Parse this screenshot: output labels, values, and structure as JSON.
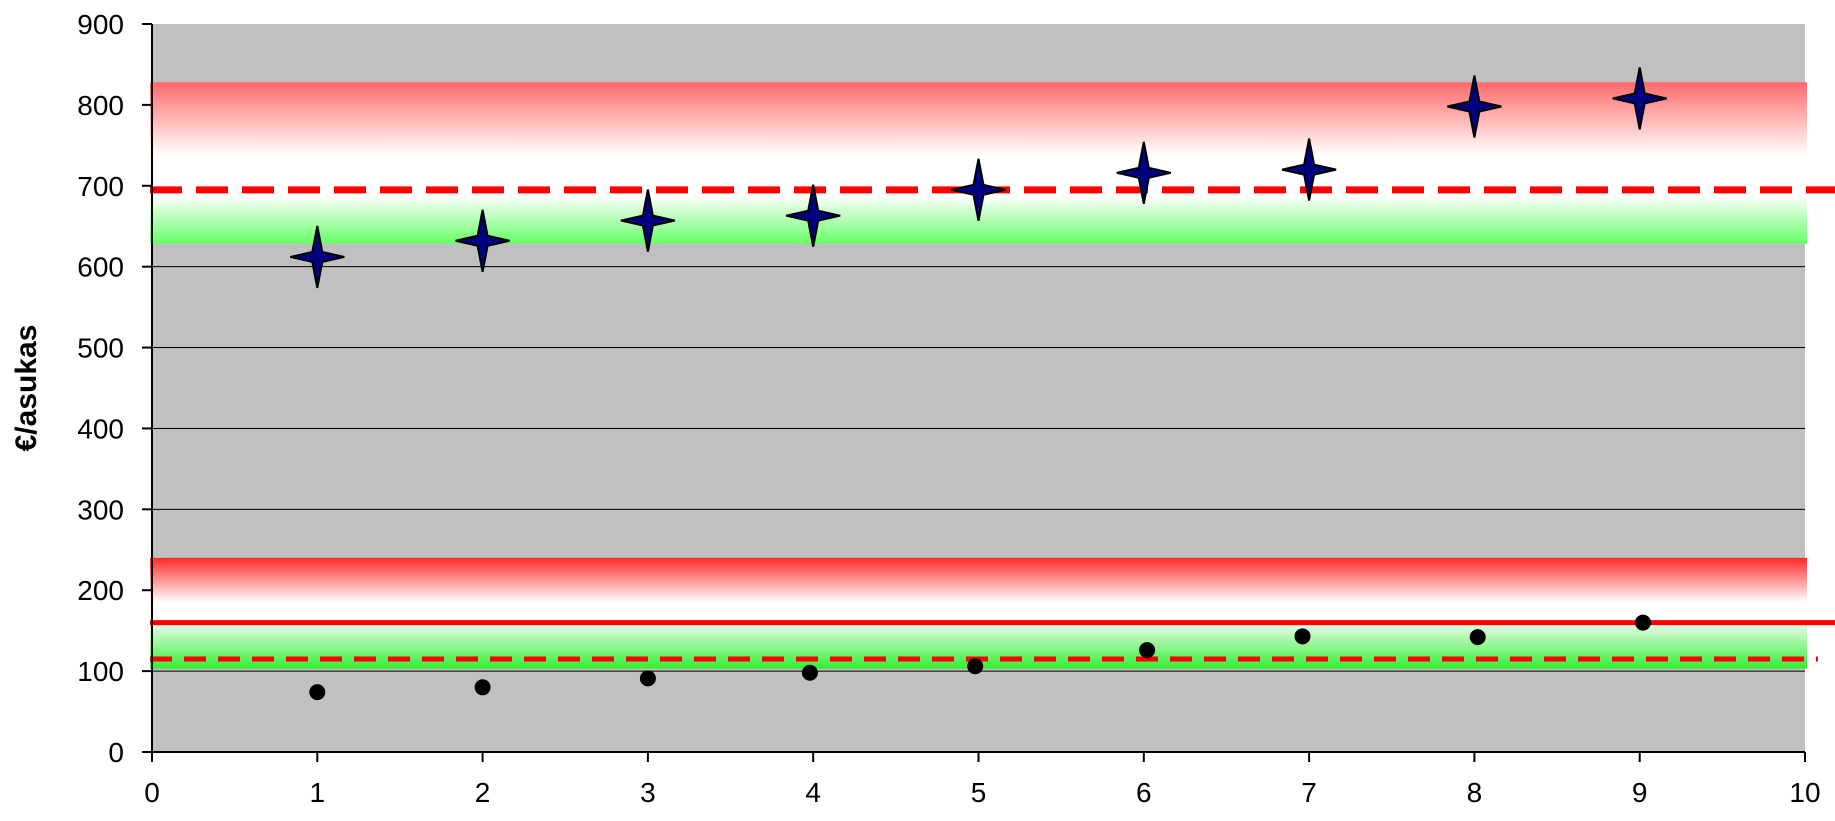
{
  "chart_data": {
    "type": "scatter",
    "title": "",
    "xlabel": "",
    "ylabel": "€/asukas",
    "xlim": [
      0,
      10
    ],
    "ylim": [
      0,
      900
    ],
    "x_ticks": [
      "0",
      "1",
      "2",
      "3",
      "4",
      "5",
      "6",
      "7",
      "8",
      "9",
      "10"
    ],
    "y_ticks": [
      "0",
      "100",
      "200",
      "300",
      "400",
      "500",
      "600",
      "700",
      "800",
      "900"
    ],
    "grid": "horizontal",
    "plot_background": "#c0c0c0",
    "series": [
      {
        "marker": "four-point-star",
        "color": "#000080",
        "points": [
          {
            "x": 1,
            "y": 612
          },
          {
            "x": 2,
            "y": 632
          },
          {
            "x": 3,
            "y": 657
          },
          {
            "x": 4,
            "y": 663
          },
          {
            "x": 5,
            "y": 695
          },
          {
            "x": 6,
            "y": 716
          },
          {
            "x": 7,
            "y": 720
          },
          {
            "x": 8,
            "y": 798
          },
          {
            "x": 9,
            "y": 808
          }
        ]
      },
      {
        "marker": "circle",
        "color": "#000000",
        "points": [
          {
            "x": 1,
            "y": 74
          },
          {
            "x": 2,
            "y": 80
          },
          {
            "x": 3,
            "y": 91
          },
          {
            "x": 3.98,
            "y": 98
          },
          {
            "x": 4.98,
            "y": 106
          },
          {
            "x": 6.02,
            "y": 126
          },
          {
            "x": 6.96,
            "y": 143
          },
          {
            "x": 8.02,
            "y": 142
          },
          {
            "x": 9.02,
            "y": 160
          }
        ]
      }
    ],
    "bands": [
      {
        "y_bottom": 628,
        "y_top": 828,
        "top_color": "#ff6a6a",
        "bottom_color": "#66ff66"
      },
      {
        "y_bottom": 103,
        "y_top": 240,
        "top_color": "#ff2a2a",
        "bottom_color": "#33ee33"
      }
    ],
    "reference_lines": [
      {
        "y": 695,
        "style": "dashed",
        "color": "#ff0000"
      },
      {
        "y": 160,
        "style": "solid",
        "color": "#ff0000"
      },
      {
        "y": 115,
        "style": "dashed",
        "color": "#ff0000"
      }
    ]
  }
}
